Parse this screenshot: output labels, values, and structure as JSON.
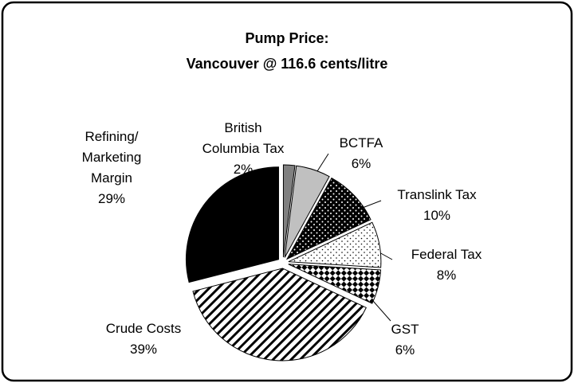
{
  "chart_data": {
    "type": "pie",
    "title": [
      "Pump Price:",
      "Vancouver @ 116.6 cents/litre"
    ],
    "categories": [
      "British Columbia Tax",
      "BCTFA",
      "Translink Tax",
      "Federal Tax",
      "GST",
      "Crude Costs",
      "Refining/ Marketing Margin"
    ],
    "values": [
      2,
      6,
      10,
      8,
      6,
      39,
      29
    ],
    "value_labels": [
      "2%",
      "6%",
      "10%",
      "8%",
      "6%",
      "39%",
      "29%"
    ]
  }
}
